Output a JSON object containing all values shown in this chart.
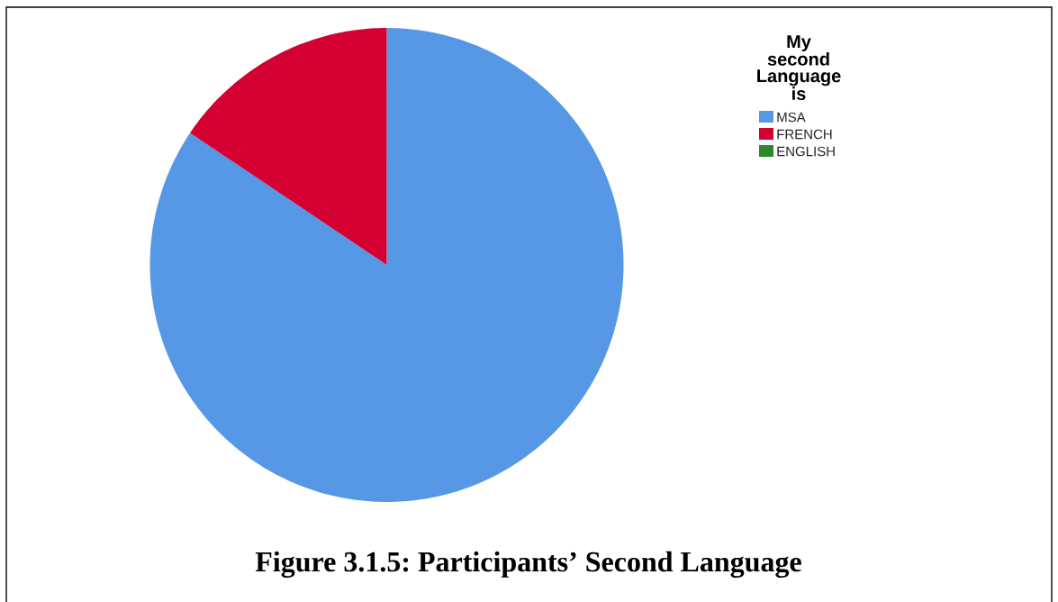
{
  "chart_data": {
    "type": "pie",
    "legend_title": "My second Language is",
    "categories": [
      "MSA",
      "FRENCH",
      "ENGLISH"
    ],
    "values": [
      84.4,
      15.6,
      0
    ],
    "colors": [
      "#5697e6",
      "#d50032",
      "#2a8a2a"
    ],
    "legend": "top right",
    "annotations": [
      "Figure 3.1.5: Participants’ Second Language"
    ]
  }
}
